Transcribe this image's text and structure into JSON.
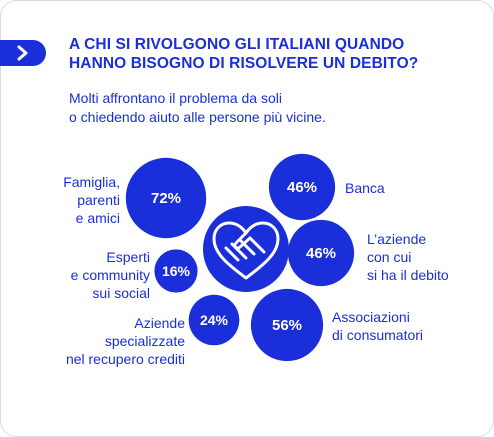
{
  "title": [
    "A CHI SI RIVOLGONO GLI ITALIANI QUANDO",
    "HANNO BISOGNO DI RISOLVERE UN DEBITO?"
  ],
  "subtitle": [
    "Molti affrontano il problema da soli",
    "o chiedendo aiuto alle persone più vicine."
  ],
  "colors": {
    "accent": "#1a2fd9",
    "text_on_accent": "#ffffff",
    "frame": "#d9dbe3"
  },
  "icons": {
    "tab": "chevron-right-icon",
    "center": "handshake-heart-icon"
  },
  "chart_data": {
    "type": "bubble",
    "items": [
      {
        "key": "famiglia",
        "value": 72,
        "value_label": "72%",
        "label_lines": [
          "Famiglia,",
          "parenti",
          "e amici"
        ]
      },
      {
        "key": "esperti",
        "value": 16,
        "value_label": "16%",
        "label_lines": [
          "Esperti",
          "e community",
          "sui social"
        ]
      },
      {
        "key": "aziende-specializzate",
        "value": 24,
        "value_label": "24%",
        "label_lines": [
          "Aziende",
          "specializzate",
          "nel recupero crediti"
        ]
      },
      {
        "key": "banca",
        "value": 46,
        "value_label": "46%",
        "label_lines": [
          "Banca"
        ]
      },
      {
        "key": "aziende-debito",
        "value": 46,
        "value_label": "46%",
        "label_lines": [
          "L’aziende",
          "con cui",
          "si ha il debito"
        ]
      },
      {
        "key": "associazioni",
        "value": 56,
        "value_label": "56%",
        "label_lines": [
          "Associazioni",
          "di consumatori"
        ]
      }
    ]
  }
}
